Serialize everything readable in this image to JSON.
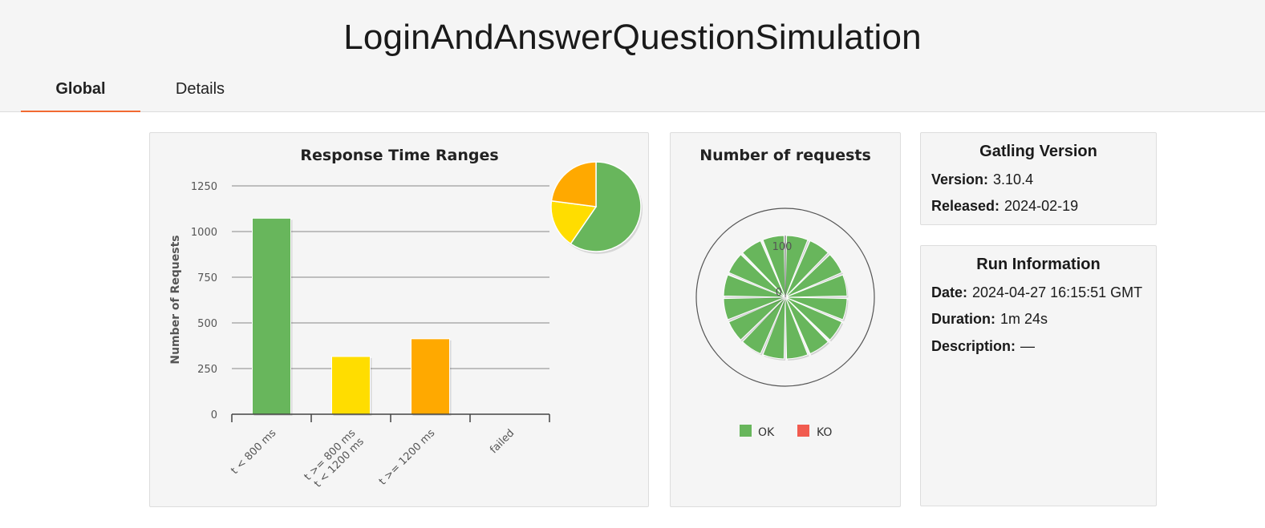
{
  "header": {
    "title": "LoginAndAnswerQuestionSimulation",
    "tabs": [
      {
        "label": "Global",
        "active": true
      },
      {
        "label": "Details",
        "active": false
      }
    ],
    "accent_color": "#f26a32"
  },
  "colors": {
    "ok": "#68b65c",
    "ko": "#f15b4f",
    "t_lt_800": "#68b65c",
    "t_800_1200": "#ffdd00",
    "t_ge_1200": "#ffa900",
    "failed": "#f15b4f"
  },
  "chart_data": [
    {
      "type": "bar",
      "title": "Response Time Ranges",
      "ylabel": "Number of Requests",
      "xlabel": "",
      "categories": [
        [
          "t < 800 ms"
        ],
        [
          "t >= 800 ms",
          "t < 1200 ms"
        ],
        [
          "t >= 1200 ms"
        ],
        [
          "failed"
        ]
      ],
      "values": [
        1073,
        316,
        413,
        0
      ],
      "yticks": [
        0,
        250,
        500,
        750,
        1000,
        1250
      ],
      "ylim": [
        0,
        1250
      ],
      "grid": true,
      "inset_pie": {
        "type": "pie",
        "values": [
          1073,
          316,
          413,
          0
        ]
      }
    },
    {
      "type": "polar",
      "title": "Number of requests",
      "series": [
        {
          "name": "OK",
          "values": [
            100,
            100,
            100,
            100,
            100,
            100,
            100,
            100,
            100,
            100,
            100,
            100,
            100,
            100,
            100,
            100
          ]
        },
        {
          "name": "KO",
          "values": [
            0,
            0,
            0,
            0,
            0,
            0,
            0,
            0,
            0,
            0,
            0,
            0,
            0,
            0,
            0,
            0
          ]
        }
      ],
      "radial_ticks": [
        "0",
        "100"
      ],
      "legend": [
        "OK",
        "KO"
      ],
      "legend_position": "bottom"
    }
  ],
  "gatling_version": {
    "title": "Gatling Version",
    "version_label": "Version:",
    "version": "3.10.4",
    "released_label": "Released:",
    "released": "2024-02-19"
  },
  "run_information": {
    "title": "Run Information",
    "date_label": "Date:",
    "date": "2024-04-27 16:15:51 GMT",
    "duration_label": "Duration:",
    "duration": "1m 24s",
    "description_label": "Description:",
    "description": "—"
  }
}
